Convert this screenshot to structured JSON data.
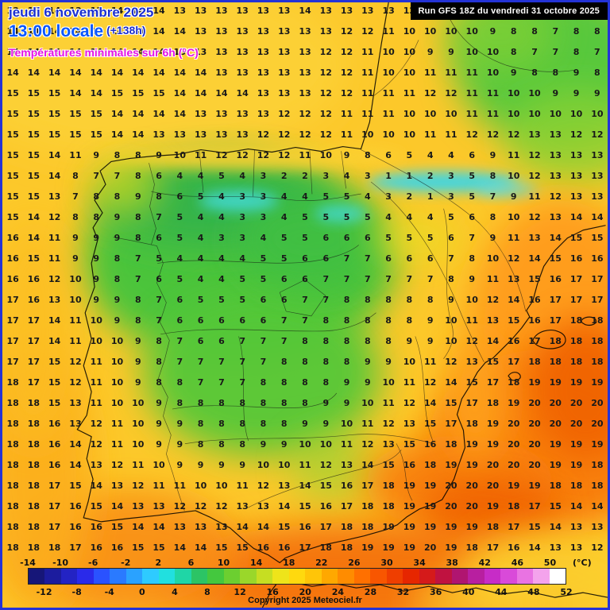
{
  "header": {
    "date_line": "jeudi 6 novembre 2025",
    "time_line": "13:00 locale",
    "offset": "(+138h)",
    "subtitle": "Températures minimales sur 6h (°C)",
    "run_info": "Run GFS 18Z du vendredi 31 octobre 2025"
  },
  "footer": {
    "copyright": "Copyright 2025 Meteociel.fr",
    "unit_label": "(°C)"
  },
  "scale": {
    "top_labels": [
      "-14",
      "-10",
      "-6",
      "-2",
      "2",
      "6",
      "10",
      "14",
      "18",
      "22",
      "26",
      "30",
      "34",
      "38",
      "42",
      "46",
      "50"
    ],
    "bottom_labels": [
      "-12",
      "-8",
      "-4",
      "0",
      "4",
      "8",
      "12",
      "16",
      "20",
      "24",
      "28",
      "32",
      "36",
      "40",
      "44",
      "48",
      "52"
    ],
    "colors": [
      "#161678",
      "#1c1c9e",
      "#2323c4",
      "#2a2aea",
      "#2a52ff",
      "#2a7aff",
      "#2aa2ff",
      "#2ecbff",
      "#21e0df",
      "#1fd6a6",
      "#2cc465",
      "#44c83e",
      "#6ccf30",
      "#9ad72a",
      "#c6de22",
      "#eee41a",
      "#ffd90e",
      "#ffc508",
      "#ffa800",
      "#ff8c00",
      "#ff7000",
      "#f85600",
      "#ef3e00",
      "#e62600",
      "#d51a1a",
      "#c01240",
      "#b01570",
      "#b81fa0",
      "#c72cc7",
      "#d94ad9",
      "#e973e2",
      "#f4a3ec",
      "#ffffff"
    ]
  },
  "colors": {
    "frame_border": "#2433d6",
    "base_field": "#fcc82a",
    "run_box_bg": "#000000",
    "date_blue": "#1b2fd0",
    "time_blue": "#0a57ff",
    "subtitle_magenta": "#e413e4"
  },
  "grid": {
    "rows": 27,
    "cols": 29,
    "values": [
      [
        13,
        13,
        14,
        13,
        13,
        14,
        14,
        14,
        13,
        13,
        13,
        13,
        13,
        13,
        14,
        13,
        13,
        13,
        13,
        12,
        11,
        10,
        10,
        9,
        9,
        8,
        8,
        9,
        9
      ],
      [
        14,
        14,
        14,
        14,
        14,
        14,
        14,
        14,
        14,
        13,
        13,
        13,
        13,
        13,
        13,
        13,
        12,
        12,
        11,
        10,
        10,
        10,
        10,
        9,
        8,
        8,
        7,
        8,
        8
      ],
      [
        14,
        14,
        14,
        14,
        14,
        14,
        14,
        14,
        13,
        13,
        13,
        13,
        13,
        13,
        13,
        12,
        12,
        11,
        10,
        10,
        9,
        9,
        10,
        10,
        8,
        7,
        7,
        8,
        7
      ],
      [
        14,
        14,
        14,
        14,
        14,
        14,
        14,
        14,
        14,
        14,
        13,
        13,
        13,
        13,
        13,
        12,
        12,
        11,
        10,
        10,
        11,
        11,
        11,
        10,
        9,
        8,
        8,
        9,
        8
      ],
      [
        15,
        15,
        15,
        14,
        14,
        15,
        15,
        15,
        14,
        14,
        14,
        14,
        13,
        13,
        13,
        12,
        12,
        11,
        11,
        11,
        12,
        12,
        11,
        11,
        10,
        10,
        9,
        9,
        9
      ],
      [
        15,
        15,
        15,
        15,
        15,
        14,
        14,
        14,
        14,
        13,
        13,
        13,
        13,
        12,
        12,
        12,
        11,
        11,
        11,
        10,
        10,
        10,
        11,
        11,
        10,
        10,
        10,
        10,
        10
      ],
      [
        15,
        15,
        15,
        15,
        15,
        14,
        14,
        13,
        13,
        13,
        13,
        13,
        12,
        12,
        12,
        12,
        11,
        10,
        10,
        10,
        11,
        11,
        12,
        12,
        12,
        13,
        13,
        12,
        12
      ],
      [
        15,
        15,
        14,
        11,
        9,
        8,
        8,
        9,
        10,
        11,
        12,
        12,
        12,
        12,
        11,
        10,
        9,
        8,
        6,
        5,
        4,
        4,
        6,
        9,
        11,
        12,
        13,
        13,
        13
      ],
      [
        15,
        15,
        14,
        8,
        7,
        7,
        8,
        6,
        4,
        4,
        5,
        4,
        3,
        2,
        2,
        3,
        4,
        3,
        1,
        1,
        2,
        3,
        5,
        8,
        10,
        12,
        13,
        13,
        13
      ],
      [
        15,
        15,
        13,
        7,
        8,
        8,
        9,
        8,
        6,
        5,
        4,
        3,
        3,
        4,
        4,
        5,
        5,
        4,
        3,
        2,
        1,
        3,
        5,
        7,
        9,
        11,
        12,
        13,
        13
      ],
      [
        15,
        14,
        12,
        8,
        8,
        9,
        8,
        7,
        5,
        4,
        4,
        3,
        3,
        4,
        5,
        5,
        5,
        5,
        4,
        4,
        4,
        5,
        6,
        8,
        10,
        12,
        13,
        14,
        14
      ],
      [
        16,
        14,
        11,
        9,
        9,
        9,
        8,
        6,
        5,
        4,
        3,
        3,
        4,
        5,
        5,
        6,
        6,
        6,
        5,
        5,
        5,
        6,
        7,
        9,
        11,
        13,
        14,
        15,
        15
      ],
      [
        16,
        15,
        11,
        9,
        9,
        8,
        7,
        5,
        4,
        4,
        4,
        4,
        5,
        5,
        6,
        6,
        7,
        7,
        6,
        6,
        6,
        7,
        8,
        10,
        12,
        14,
        15,
        16,
        16
      ],
      [
        16,
        16,
        12,
        10,
        9,
        8,
        7,
        6,
        5,
        4,
        4,
        5,
        5,
        6,
        6,
        7,
        7,
        7,
        7,
        7,
        7,
        8,
        9,
        11,
        13,
        15,
        16,
        17,
        17
      ],
      [
        17,
        16,
        13,
        10,
        9,
        9,
        8,
        7,
        6,
        5,
        5,
        5,
        6,
        6,
        7,
        7,
        8,
        8,
        8,
        8,
        8,
        9,
        10,
        12,
        14,
        16,
        17,
        17,
        17
      ],
      [
        17,
        17,
        14,
        11,
        10,
        9,
        8,
        7,
        6,
        6,
        6,
        6,
        6,
        7,
        7,
        8,
        8,
        8,
        8,
        8,
        9,
        10,
        11,
        13,
        15,
        16,
        17,
        18,
        18
      ],
      [
        17,
        17,
        14,
        11,
        10,
        10,
        9,
        8,
        7,
        6,
        6,
        7,
        7,
        7,
        8,
        8,
        8,
        8,
        8,
        9,
        9,
        10,
        12,
        14,
        16,
        17,
        18,
        18,
        18
      ],
      [
        17,
        17,
        15,
        12,
        11,
        10,
        9,
        8,
        7,
        7,
        7,
        7,
        7,
        8,
        8,
        8,
        8,
        9,
        9,
        10,
        11,
        12,
        13,
        15,
        17,
        18,
        18,
        18,
        18
      ],
      [
        18,
        17,
        15,
        12,
        11,
        10,
        9,
        8,
        8,
        7,
        7,
        7,
        8,
        8,
        8,
        8,
        9,
        9,
        10,
        11,
        12,
        14,
        15,
        17,
        18,
        19,
        19,
        19,
        19
      ],
      [
        18,
        18,
        15,
        13,
        11,
        10,
        10,
        9,
        8,
        8,
        8,
        8,
        8,
        8,
        8,
        9,
        9,
        10,
        11,
        12,
        14,
        15,
        17,
        18,
        19,
        20,
        20,
        20,
        20
      ],
      [
        18,
        18,
        16,
        13,
        12,
        11,
        10,
        9,
        9,
        8,
        8,
        8,
        8,
        8,
        9,
        9,
        10,
        11,
        12,
        13,
        15,
        17,
        18,
        19,
        20,
        20,
        20,
        20,
        20
      ],
      [
        18,
        18,
        16,
        14,
        12,
        11,
        10,
        9,
        9,
        8,
        8,
        8,
        9,
        9,
        10,
        10,
        11,
        12,
        13,
        15,
        16,
        18,
        19,
        19,
        20,
        20,
        19,
        19,
        19
      ],
      [
        18,
        18,
        16,
        14,
        13,
        12,
        11,
        10,
        9,
        9,
        9,
        9,
        10,
        10,
        11,
        12,
        13,
        14,
        15,
        16,
        18,
        19,
        19,
        20,
        20,
        20,
        19,
        19,
        18
      ],
      [
        18,
        18,
        17,
        15,
        14,
        13,
        12,
        11,
        11,
        10,
        10,
        11,
        12,
        13,
        14,
        15,
        16,
        17,
        18,
        19,
        19,
        20,
        20,
        20,
        19,
        19,
        18,
        18,
        18
      ],
      [
        18,
        18,
        17,
        16,
        15,
        14,
        13,
        13,
        12,
        12,
        12,
        13,
        13,
        14,
        15,
        16,
        17,
        18,
        18,
        19,
        19,
        20,
        20,
        19,
        18,
        17,
        15,
        14,
        14
      ],
      [
        18,
        18,
        17,
        16,
        16,
        15,
        14,
        14,
        13,
        13,
        13,
        14,
        14,
        15,
        16,
        17,
        18,
        18,
        19,
        19,
        19,
        19,
        19,
        18,
        17,
        15,
        14,
        13,
        13
      ],
      [
        18,
        18,
        18,
        17,
        16,
        16,
        15,
        15,
        14,
        14,
        15,
        15,
        16,
        16,
        17,
        18,
        18,
        19,
        19,
        19,
        20,
        19,
        18,
        17,
        16,
        14,
        13,
        13,
        12
      ]
    ]
  }
}
